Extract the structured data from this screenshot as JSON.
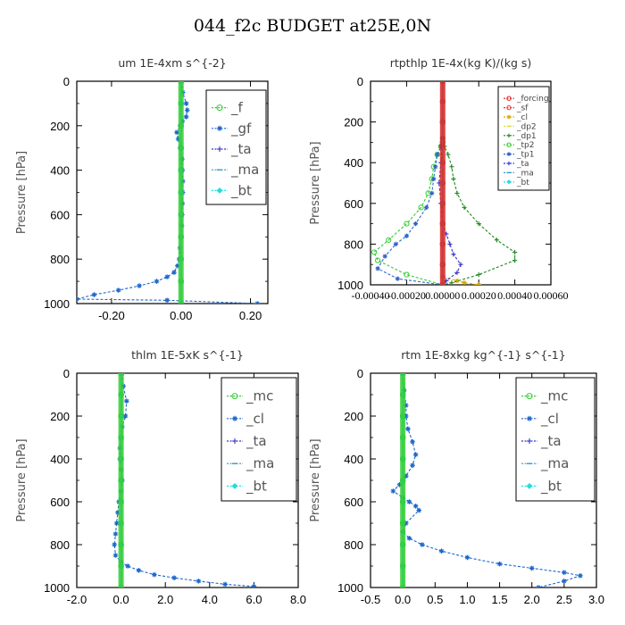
{
  "page": {
    "title": "044_f2c  BUDGET at25E,0N"
  },
  "chart_data": [
    {
      "id": "um",
      "type": "line",
      "title": "um   1E-4xm  s^{-2}",
      "xlabel": "",
      "ylabel": "Pressure [hPa]",
      "xlim": [
        -0.3,
        0.25
      ],
      "ylim": [
        1000,
        0
      ],
      "xticks": [
        -0.2,
        0.0,
        0.2
      ],
      "xtick_labels": [
        "-0.20",
        "0.00",
        "0.20"
      ],
      "yticks": [
        0,
        200,
        400,
        600,
        800,
        1000
      ],
      "legend_position": "top-right",
      "legend_style": "large",
      "series": [
        {
          "name": "_f",
          "color": "#33cc33",
          "marker": "circle",
          "x": [
            0,
            0,
            0,
            0,
            0,
            0,
            0,
            0,
            0,
            0,
            0
          ],
          "y": [
            0,
            100,
            200,
            300,
            400,
            500,
            600,
            700,
            800,
            900,
            1000
          ]
        },
        {
          "name": "_gf",
          "color": "#1a66cc",
          "marker": "star",
          "x": [
            0.002,
            0.005,
            0.015,
            0.018,
            0.015,
            0.004,
            -0.002,
            -0.012,
            -0.008,
            -0.002,
            0.003,
            0.004,
            0.005,
            0.005,
            0.004,
            0.003,
            0.002,
            0.0,
            -0.003,
            -0.005,
            -0.01,
            -0.02,
            -0.04,
            -0.07,
            -0.12,
            -0.18,
            -0.25,
            -0.3,
            -0.04,
            0.22
          ],
          "y": [
            0,
            50,
            100,
            130,
            160,
            180,
            200,
            230,
            260,
            300,
            350,
            400,
            450,
            500,
            550,
            600,
            650,
            700,
            750,
            800,
            830,
            860,
            880,
            900,
            920,
            940,
            960,
            980,
            985,
            1000
          ]
        },
        {
          "name": "_ta",
          "color": "#3333cc",
          "marker": "plus",
          "x": [
            0,
            0,
            0,
            0,
            0,
            0,
            0,
            0,
            0,
            0,
            0
          ],
          "y": [
            0,
            100,
            200,
            300,
            400,
            500,
            600,
            700,
            800,
            900,
            1000
          ]
        },
        {
          "name": "_ma",
          "color": "#3399cc",
          "marker": "dash",
          "x": [
            0,
            0,
            0,
            0,
            0,
            0,
            0,
            0,
            0,
            0,
            0
          ],
          "y": [
            0,
            100,
            200,
            300,
            400,
            500,
            600,
            700,
            800,
            900,
            1000
          ]
        },
        {
          "name": "_bt",
          "color": "#22dddd",
          "marker": "diamond",
          "x": [
            0,
            0,
            0,
            0,
            0,
            0,
            0,
            0,
            0,
            0,
            0
          ],
          "y": [
            0,
            100,
            200,
            300,
            400,
            500,
            600,
            700,
            800,
            900,
            1000
          ]
        }
      ]
    },
    {
      "id": "rtpthlp",
      "type": "line",
      "title": "rtpthlp   1E-4x(kg K)/(kg s)",
      "xlabel": "",
      "ylabel": "Pressure [hPa]",
      "xlim": [
        -0.0004,
        0.0006
      ],
      "ylim": [
        1000,
        0
      ],
      "xticks": [
        -0.0004,
        -0.0002,
        0.0,
        0.0002,
        0.0004,
        0.0006
      ],
      "xtick_labels": [
        "-0.00040",
        "-0.00020",
        "0.00000",
        "0.00020",
        "0.00040",
        "0.00060"
      ],
      "yticks": [
        0,
        200,
        400,
        600,
        800,
        1000
      ],
      "legend_position": "top-right",
      "legend_style": "small",
      "series": [
        {
          "name": "_forcing",
          "color": "#dd2222",
          "marker": "circle",
          "x": [
            0,
            0,
            0,
            0,
            0,
            0,
            0,
            0,
            0,
            0,
            0
          ],
          "y": [
            0,
            100,
            200,
            300,
            400,
            500,
            600,
            700,
            800,
            900,
            1000
          ]
        },
        {
          "name": "_sf",
          "color": "#ee3333",
          "marker": "circle",
          "x": [
            0,
            0,
            0,
            0,
            0,
            0,
            0,
            0,
            0,
            0,
            0
          ],
          "y": [
            0,
            100,
            200,
            300,
            400,
            500,
            600,
            700,
            800,
            900,
            1000
          ]
        },
        {
          "name": "_cl",
          "color": "#ddaa00",
          "marker": "star",
          "x": [
            0,
            0,
            0,
            0,
            0,
            0,
            0,
            0,
            0,
            0,
            0,
            8e-05,
            0.00012,
            0.0002
          ],
          "y": [
            0,
            100,
            200,
            300,
            400,
            500,
            600,
            700,
            800,
            900,
            960,
            980,
            990,
            1000
          ]
        },
        {
          "name": "_dp2",
          "color": "#dddd44",
          "marker": "dash",
          "x": [
            0,
            0,
            0,
            0,
            0,
            0,
            0,
            0,
            0,
            0,
            0
          ],
          "y": [
            0,
            100,
            200,
            300,
            400,
            500,
            600,
            700,
            800,
            900,
            1000
          ]
        },
        {
          "name": "_dp1",
          "color": "#228822",
          "marker": "plus",
          "x": [
            0,
            0,
            0,
            1e-05,
            3e-05,
            5e-05,
            6e-05,
            8e-05,
            0.00012,
            0.0002,
            0.0003,
            0.0004,
            0.0004,
            0.0002,
            5e-05,
            0
          ],
          "y": [
            0,
            200,
            280,
            320,
            360,
            420,
            480,
            550,
            620,
            700,
            780,
            840,
            880,
            950,
            990,
            1000
          ]
        },
        {
          "name": "_tp2",
          "color": "#33cc33",
          "marker": "circle",
          "x": [
            0,
            0,
            0,
            -1e-05,
            -3e-05,
            -5e-05,
            -6e-05,
            -8e-05,
            -0.00012,
            -0.0002,
            -0.0003,
            -0.00038,
            -0.00036,
            -0.0002,
            0
          ],
          "y": [
            0,
            200,
            280,
            320,
            360,
            420,
            480,
            550,
            620,
            700,
            780,
            840,
            880,
            950,
            1000
          ]
        },
        {
          "name": "_tp1",
          "color": "#3366cc",
          "marker": "star",
          "x": [
            0,
            0,
            0,
            -1e-05,
            -3e-05,
            -4e-05,
            -5e-05,
            -6e-05,
            -9e-05,
            -0.00015,
            -0.0002,
            -0.00026,
            -0.00032,
            -0.00036,
            -0.00025,
            0
          ],
          "y": [
            0,
            200,
            280,
            320,
            360,
            420,
            480,
            550,
            620,
            700,
            760,
            800,
            860,
            920,
            970,
            1000
          ]
        },
        {
          "name": "_ta",
          "color": "#3333cc",
          "marker": "plus",
          "x": [
            0,
            0,
            0,
            -1e-05,
            -2e-05,
            -1e-05,
            0,
            2e-05,
            4e-05,
            6e-05,
            0.0001,
            8e-05,
            2e-05,
            0
          ],
          "y": [
            0,
            200,
            300,
            400,
            500,
            600,
            700,
            750,
            800,
            850,
            900,
            940,
            980,
            1000
          ]
        },
        {
          "name": "_ma",
          "color": "#3399cc",
          "marker": "dash",
          "x": [
            0,
            0,
            0,
            0,
            0,
            0,
            0,
            0,
            0,
            0,
            0
          ],
          "y": [
            0,
            100,
            200,
            300,
            400,
            500,
            600,
            700,
            800,
            900,
            1000
          ]
        },
        {
          "name": "_bt",
          "color": "#22dddd",
          "marker": "diamond",
          "x": [
            0,
            0,
            0,
            0,
            0,
            0,
            0,
            0,
            0,
            0,
            0
          ],
          "y": [
            0,
            100,
            200,
            300,
            400,
            500,
            600,
            700,
            800,
            900,
            1000
          ]
        }
      ]
    },
    {
      "id": "thlm",
      "type": "line",
      "title": "thlm   1E-5xK  s^{-1}",
      "xlabel": "",
      "ylabel": "Pressure [hPa]",
      "xlim": [
        -2.0,
        8.0
      ],
      "ylim": [
        1000,
        0
      ],
      "xticks": [
        -2.0,
        0.0,
        2.0,
        4.0,
        6.0,
        8.0
      ],
      "xtick_labels": [
        "-2.0",
        "0.0",
        "2.0",
        "4.0",
        "6.0",
        "8.0"
      ],
      "yticks": [
        0,
        200,
        400,
        600,
        800,
        1000
      ],
      "legend_position": "top-right",
      "legend_style": "large",
      "series": [
        {
          "name": "_mc",
          "color": "#33cc33",
          "marker": "circle",
          "x": [
            0,
            0,
            0,
            0,
            0,
            0,
            0,
            0,
            0,
            0,
            0
          ],
          "y": [
            0,
            100,
            200,
            300,
            400,
            500,
            600,
            700,
            800,
            900,
            1000
          ]
        },
        {
          "name": "_cl",
          "color": "#1a66cc",
          "marker": "star",
          "x": [
            0.05,
            0.1,
            0.25,
            0.2,
            0.05,
            0.0,
            -0.05,
            -0.05,
            0.0,
            0.05,
            0.0,
            -0.1,
            -0.15,
            -0.2,
            -0.25,
            -0.3,
            -0.25,
            0.0,
            0.3,
            0.8,
            1.5,
            2.4,
            3.5,
            4.7,
            6.0
          ],
          "y": [
            0,
            60,
            130,
            200,
            250,
            300,
            350,
            400,
            450,
            500,
            550,
            600,
            650,
            700,
            750,
            800,
            850,
            880,
            900,
            920,
            940,
            955,
            970,
            985,
            995
          ]
        },
        {
          "name": "_ta",
          "color": "#3333cc",
          "marker": "plus",
          "x": [
            0,
            0,
            0,
            0,
            0,
            0,
            0,
            0,
            0,
            0,
            0
          ],
          "y": [
            0,
            100,
            200,
            300,
            400,
            500,
            600,
            700,
            800,
            900,
            1000
          ]
        },
        {
          "name": "_ma",
          "color": "#3399cc",
          "marker": "dash",
          "x": [
            0,
            0,
            0,
            0,
            0,
            0,
            0,
            0,
            0,
            0,
            0
          ],
          "y": [
            0,
            100,
            200,
            300,
            400,
            500,
            600,
            700,
            800,
            900,
            1000
          ]
        },
        {
          "name": "_bt",
          "color": "#22dddd",
          "marker": "diamond",
          "x": [
            0,
            0,
            0,
            0,
            0,
            0,
            0,
            0,
            0,
            0,
            0
          ],
          "y": [
            0,
            100,
            200,
            300,
            400,
            500,
            600,
            700,
            800,
            900,
            1000
          ]
        }
      ]
    },
    {
      "id": "rtm",
      "type": "line",
      "title": "rtm   1E-8xkg  kg^{-1}  s^{-1}",
      "xlabel": "",
      "ylabel": "Pressure [hPa]",
      "xlim": [
        -0.5,
        3.0
      ],
      "ylim": [
        1000,
        0
      ],
      "xticks": [
        -0.5,
        0.0,
        0.5,
        1.0,
        1.5,
        2.0,
        2.5,
        3.0
      ],
      "xtick_labels": [
        "-0.5",
        "0.0",
        "0.5",
        "1.0",
        "1.5",
        "2.0",
        "2.5",
        "3.0"
      ],
      "yticks": [
        0,
        200,
        400,
        600,
        800,
        1000
      ],
      "legend_position": "top-right",
      "legend_style": "large",
      "series": [
        {
          "name": "_mc",
          "color": "#33cc33",
          "marker": "circle",
          "x": [
            0,
            0,
            0,
            0,
            0,
            0,
            0,
            0,
            0,
            0,
            0
          ],
          "y": [
            0,
            100,
            200,
            300,
            400,
            500,
            600,
            700,
            800,
            900,
            1000
          ]
        },
        {
          "name": "_cl",
          "color": "#1a66cc",
          "marker": "star",
          "x": [
            0,
            0.02,
            0.05,
            0.05,
            0.08,
            0.15,
            0.2,
            0.15,
            0.05,
            -0.05,
            -0.15,
            0.0,
            0.1,
            0.2,
            0.25,
            0.05,
            0.0,
            0.1,
            0.3,
            0.6,
            1.0,
            1.5,
            2.0,
            2.5,
            2.75,
            2.5,
            2.1
          ],
          "y": [
            0,
            80,
            150,
            200,
            260,
            320,
            380,
            430,
            480,
            520,
            550,
            580,
            600,
            620,
            640,
            700,
            740,
            770,
            800,
            830,
            860,
            890,
            910,
            930,
            945,
            970,
            1000
          ]
        },
        {
          "name": "_ta",
          "color": "#3333cc",
          "marker": "plus",
          "x": [
            0,
            0,
            0,
            0,
            0,
            0,
            0,
            0,
            0,
            0,
            0
          ],
          "y": [
            0,
            100,
            200,
            300,
            400,
            500,
            600,
            700,
            800,
            900,
            1000
          ]
        },
        {
          "name": "_ma",
          "color": "#3399cc",
          "marker": "dash",
          "x": [
            0,
            0,
            0,
            0,
            0,
            0,
            0,
            0,
            0,
            0,
            0
          ],
          "y": [
            0,
            100,
            200,
            300,
            400,
            500,
            600,
            700,
            800,
            900,
            1000
          ]
        },
        {
          "name": "_bt",
          "color": "#22dddd",
          "marker": "diamond",
          "x": [
            0,
            0,
            0,
            0,
            0,
            0,
            0,
            0,
            0,
            0,
            0
          ],
          "y": [
            0,
            100,
            200,
            300,
            400,
            500,
            600,
            700,
            800,
            900,
            1000
          ]
        }
      ]
    }
  ]
}
